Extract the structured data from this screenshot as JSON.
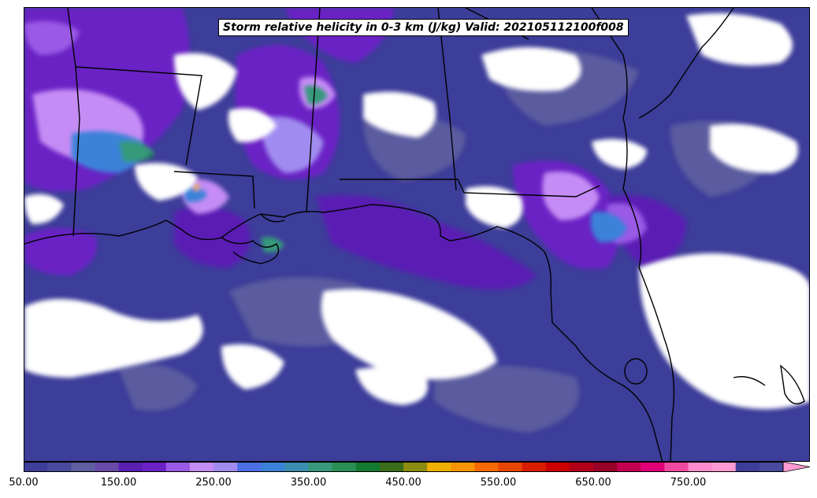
{
  "title": "Storm relative helicity in 0-3 km (J/kg) Valid: 202105112100f008",
  "colorbar": {
    "min": 50,
    "max": 850,
    "step": 25,
    "extend": "max",
    "tick_labels": [
      "50.00",
      "150.00",
      "250.00",
      "350.00",
      "450.00",
      "550.00",
      "650.00",
      "750.00"
    ],
    "tick_values": [
      50,
      150,
      250,
      350,
      450,
      550,
      650,
      750
    ],
    "colors": [
      "#3d3d9a",
      "#4a4a9e",
      "#5e5ea0",
      "#6a4aa8",
      "#5a1fb3",
      "#6a22c4",
      "#9a5ae6",
      "#c58cf5",
      "#a08cf0",
      "#4c6fe6",
      "#3a82d8",
      "#3a8fb0",
      "#35997a",
      "#2b8f55",
      "#137a2f",
      "#3a6e1a",
      "#8c8c10",
      "#f0b000",
      "#f79500",
      "#f56a00",
      "#e84600",
      "#d91e00",
      "#cc0000",
      "#b3001a",
      "#960028",
      "#c40050",
      "#e00078",
      "#f04aa0",
      "#ff8ccc",
      "#ff9ad2"
    ]
  },
  "map": {
    "background": "#3d3d9a",
    "no_data_color": "#ffffff",
    "features": [
      "Gulf of Mexico",
      "Florida peninsula",
      "Louisiana coast",
      "State boundaries"
    ]
  }
}
